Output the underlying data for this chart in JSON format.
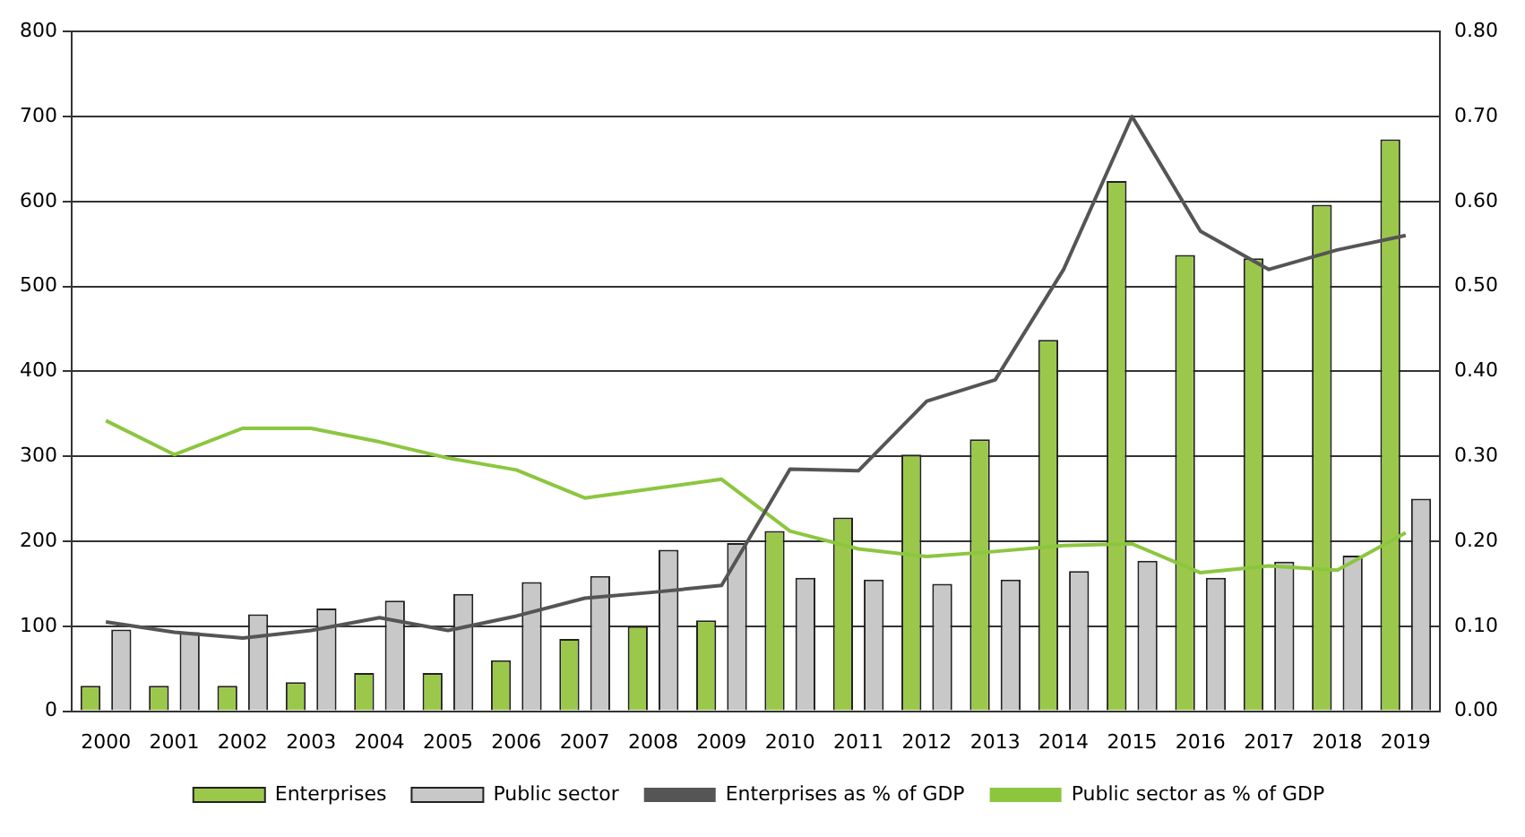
{
  "chart_data": {
    "type": "bar",
    "categories": [
      "2000",
      "2001",
      "2002",
      "2003",
      "2004",
      "2005",
      "2006",
      "2007",
      "2008",
      "2009",
      "2010",
      "2011",
      "2012",
      "2013",
      "2014",
      "2015",
      "2016",
      "2017",
      "2018",
      "2019"
    ],
    "series": [
      {
        "name": "Enterprises",
        "color": "#9bc84a",
        "values": [
          30,
          30,
          30,
          34,
          45,
          45,
          60,
          85,
          100,
          107,
          212,
          228,
          302,
          320,
          437,
          624,
          537,
          533,
          596,
          673
        ]
      },
      {
        "name": "Public sector",
        "color": "#c8c8c8",
        "values": [
          96,
          93,
          114,
          121,
          130,
          138,
          152,
          159,
          190,
          198,
          157,
          155,
          150,
          155,
          165,
          177,
          157,
          176,
          183,
          250
        ]
      },
      {
        "name": "Enterprises as % of GDP",
        "type": "line",
        "axis": "y2",
        "color": "#555555",
        "values": [
          0.105,
          0.093,
          0.086,
          0.095,
          0.11,
          0.095,
          0.112,
          0.133,
          0.14,
          0.148,
          0.285,
          0.283,
          0.365,
          0.39,
          0.52,
          0.7,
          0.565,
          0.52,
          0.543,
          0.56
        ]
      },
      {
        "name": "Public sector as % of GDP",
        "type": "line",
        "axis": "y2",
        "color": "#8cc63f",
        "values": [
          0.342,
          0.302,
          0.333,
          0.333,
          0.317,
          0.298,
          0.284,
          0.251,
          0.262,
          0.273,
          0.212,
          0.191,
          0.182,
          0.188,
          0.195,
          0.197,
          0.163,
          0.171,
          0.166,
          0.21
        ]
      }
    ],
    "ylim": [
      0,
      800
    ],
    "yticks": [
      0,
      100,
      200,
      300,
      400,
      500,
      600,
      700,
      800
    ],
    "y2lim": [
      0,
      0.8
    ],
    "y2ticks": [
      {
        "value": 0,
        "label": "0.00"
      },
      {
        "value": 0.1,
        "label": "0.10"
      },
      {
        "value": 0.2,
        "label": "0.20"
      },
      {
        "value": 0.3,
        "label": "0.30"
      },
      {
        "value": 0.4,
        "label": "0.40"
      },
      {
        "value": 0.5,
        "label": "0.50"
      },
      {
        "value": 0.6,
        "label": "0.60"
      },
      {
        "value": 0.7,
        "label": "0.70"
      },
      {
        "value": 0.8,
        "label": "0.80"
      }
    ],
    "grid": "y",
    "legend": "bottom",
    "marker": "none",
    "line_style": "solid"
  }
}
